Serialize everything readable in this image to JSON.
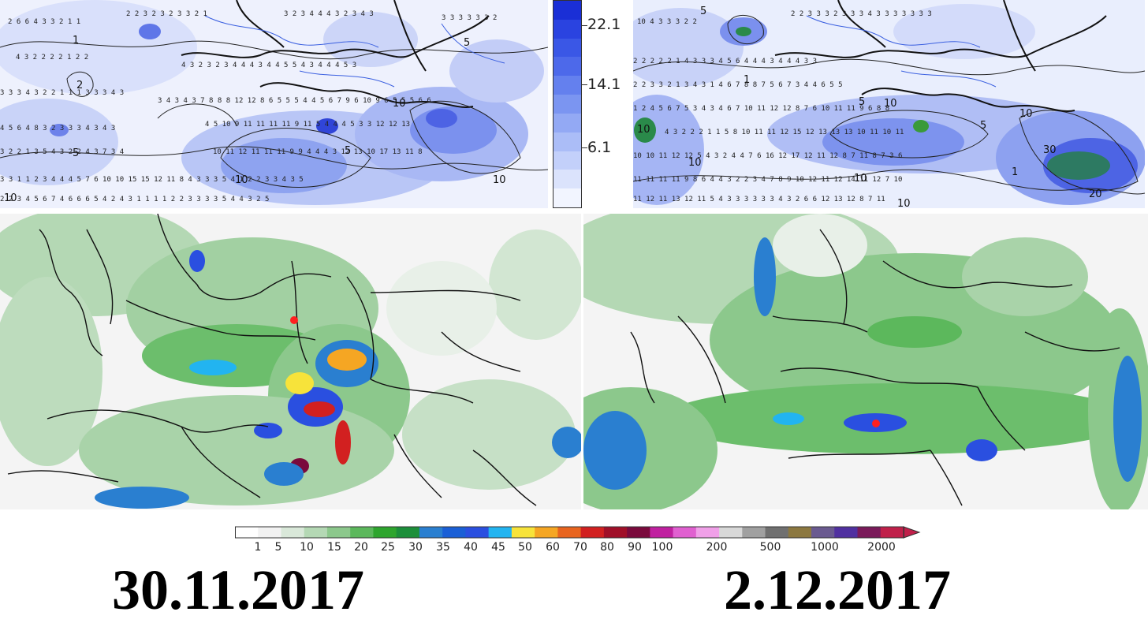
{
  "top_scale": {
    "labels": [
      "22.1",
      "14.1",
      "6.1"
    ],
    "colors": [
      "#1a2fd6",
      "#2a43e0",
      "#3a57e6",
      "#4d69ea",
      "#6480ee",
      "#7b95f1",
      "#93a9f4",
      "#abbdf7",
      "#c3d0fa",
      "#dbe3fc",
      "#f2f5ff"
    ]
  },
  "bottom_scale": {
    "labels": [
      "1",
      "5",
      "10",
      "15",
      "20",
      "25",
      "30",
      "35",
      "40",
      "45",
      "50",
      "60",
      "70",
      "80",
      "90",
      "100",
      "200",
      "500",
      "1000",
      "2000"
    ],
    "colors": [
      "#ffffff",
      "#f2f2f2",
      "#d9e8d9",
      "#b4d8b4",
      "#8cc88c",
      "#5cb85c",
      "#2ea52e",
      "#1c8f3a",
      "#2a7fd0",
      "#1a5fd6",
      "#2a4fe0",
      "#22b4f0",
      "#f7e33a",
      "#f5a623",
      "#e8641e",
      "#d22020",
      "#a00f28",
      "#7a0a3c",
      "#c020a0",
      "#e060d0",
      "#f0a0e8",
      "#d8d8d8",
      "#a0a0a0",
      "#707070",
      "#8c7840",
      "#6a5a90",
      "#5030a0",
      "#7a1a5a",
      "#c0204a"
    ]
  },
  "dates": {
    "left": "30.11.2017",
    "right": "2.12.2017"
  },
  "marker_color": "#ff2020",
  "contour_labels_left": [
    "1",
    "2",
    "5",
    "10",
    "10",
    "10",
    "5",
    "10",
    "5"
  ],
  "contour_labels_right": [
    "5",
    "10",
    "1",
    "5",
    "10",
    "10",
    "5",
    "10",
    "30",
    "20",
    "1",
    "10",
    "10"
  ]
}
